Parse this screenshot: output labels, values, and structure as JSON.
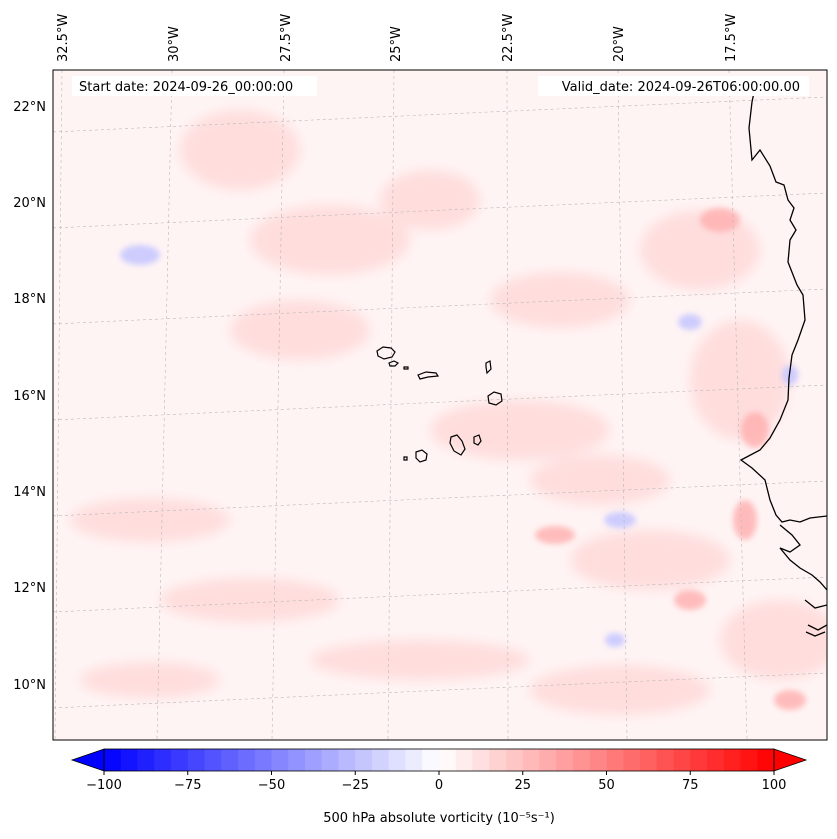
{
  "header": {
    "start_date": "Start date: 2024-09-26_00:00:00",
    "valid_date": "Valid_date: 2024-09-26T06:00:00.00"
  },
  "map": {
    "lon_labels": [
      "32.5°W",
      "30°W",
      "27.5°W",
      "25°W",
      "22.5°W",
      "20°W",
      "17.5°W"
    ],
    "lat_labels": [
      "22°N",
      "20°N",
      "18°N",
      "16°N",
      "14°N",
      "12°N",
      "10°N"
    ],
    "gridlines": true,
    "colors": {
      "background_field": "#fff3f3",
      "coastline": "#000000",
      "gridline": "#b0b0b0"
    }
  },
  "colorbar": {
    "label": "500 hPa absolute vorticity (10⁻⁵s⁻¹)",
    "ticks": [
      "−100",
      "−75",
      "−50",
      "−25",
      "0",
      "25",
      "50",
      "75",
      "100"
    ],
    "range": [
      -100,
      100
    ],
    "colormap": "bwr",
    "extend": "both"
  }
}
